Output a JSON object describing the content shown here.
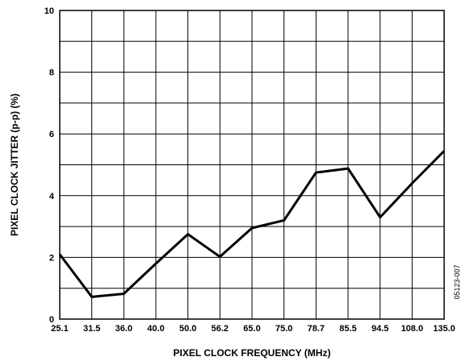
{
  "chart_data": {
    "type": "line",
    "x": [
      "25.1",
      "31.5",
      "36.0",
      "40.0",
      "50.0",
      "56.2",
      "65.0",
      "75.0",
      "78.7",
      "85.5",
      "94.5",
      "108.0",
      "135.0"
    ],
    "series": [
      {
        "values": [
          2.1,
          0.72,
          0.82,
          1.8,
          2.75,
          2.02,
          2.95,
          3.2,
          4.75,
          4.88,
          3.3,
          4.4,
          5.45
        ]
      }
    ],
    "xlabel": "PIXEL CLOCK FREQUENCY (MHz)",
    "ylabel": "PIXEL CLOCK JITTER (p-p) (%)",
    "ylim": [
      0,
      10
    ],
    "yticks": [
      "0",
      "2",
      "4",
      "6",
      "8",
      "10"
    ],
    "grid": true,
    "legend": "none",
    "figure_id": "05123-007",
    "line_color": "#000000"
  }
}
